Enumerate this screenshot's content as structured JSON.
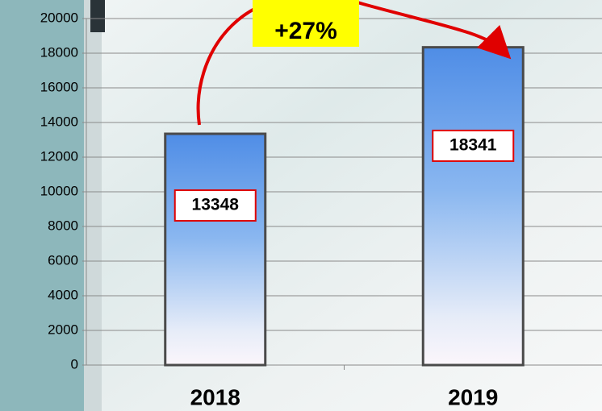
{
  "chart_data": {
    "type": "bar",
    "categories": [
      "2018",
      "2019"
    ],
    "values": [
      13348,
      18341
    ],
    "color": "#5b95e8",
    "ylim": [
      0,
      20000
    ],
    "yticks": [
      0,
      2000,
      4000,
      6000,
      8000,
      10000,
      12000,
      14000,
      16000,
      18000,
      20000
    ],
    "grid": true,
    "annotation": "+27%"
  }
}
